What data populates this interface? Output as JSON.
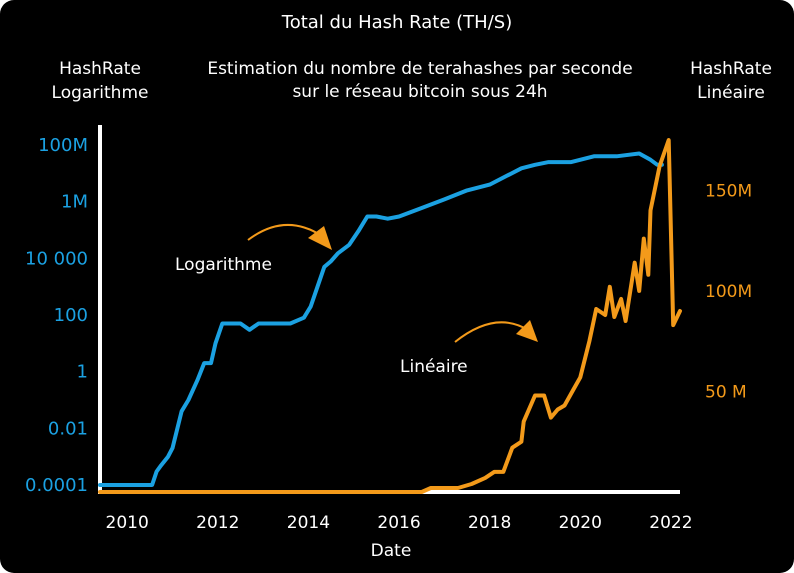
{
  "chart_data": {
    "type": "line",
    "title": "Total du Hash Rate  (TH/S)",
    "subtitle_lines": [
      "Estimation du nombre de terahashes  par seconde",
      "sur le réseau bitcoin sous 24h"
    ],
    "left_axis_title_lines": [
      "HashRate",
      "Logarithme"
    ],
    "right_axis_title_lines": [
      "HashRate",
      "Linéaire"
    ],
    "xlabel": "Date",
    "x_ticks": [
      "2010",
      "2012",
      "2014",
      "2016",
      "2018",
      "2020",
      "2022"
    ],
    "xlim": [
      2009.4,
      2022.2
    ],
    "left_axis": {
      "scale": "log",
      "ylim_log10": [
        -4,
        8
      ],
      "ticks": [
        {
          "value": 100000000,
          "label": "100M"
        },
        {
          "value": 1000000,
          "label": "1M"
        },
        {
          "value": 10000,
          "label": "10 000"
        },
        {
          "value": 100,
          "label": "100"
        },
        {
          "value": 1,
          "label": "1"
        },
        {
          "value": 0.01,
          "label": "0.01"
        },
        {
          "value": 0.0001,
          "label": "0.0001"
        }
      ]
    },
    "right_axis": {
      "scale": "linear",
      "ylim": [
        0,
        175000000
      ],
      "ticks": [
        {
          "value": 150000000,
          "label": "150M"
        },
        {
          "value": 100000000,
          "label": "100M"
        },
        {
          "value": 50000000,
          "label": "50 M"
        }
      ]
    },
    "series": [
      {
        "name": "Logarithme",
        "axis": "left",
        "color": "#1ba1e2",
        "points": [
          [
            2009.4,
            0.0001
          ],
          [
            2010.35,
            0.0001
          ],
          [
            2010.55,
            0.0001
          ],
          [
            2010.65,
            0.0003
          ],
          [
            2010.75,
            0.0005
          ],
          [
            2010.9,
            0.001
          ],
          [
            2011.0,
            0.002
          ],
          [
            2011.2,
            0.04
          ],
          [
            2011.35,
            0.1
          ],
          [
            2011.55,
            0.5
          ],
          [
            2011.7,
            2
          ],
          [
            2011.85,
            2
          ],
          [
            2011.95,
            10
          ],
          [
            2012.1,
            50
          ],
          [
            2012.3,
            50
          ],
          [
            2012.5,
            50
          ],
          [
            2012.7,
            30
          ],
          [
            2012.9,
            50
          ],
          [
            2013.3,
            50
          ],
          [
            2013.6,
            50
          ],
          [
            2013.9,
            80
          ],
          [
            2014.05,
            200
          ],
          [
            2014.2,
            1000
          ],
          [
            2014.35,
            5000
          ],
          [
            2014.5,
            8000
          ],
          [
            2014.65,
            15000
          ],
          [
            2014.9,
            30000
          ],
          [
            2015.1,
            90000
          ],
          [
            2015.3,
            300000
          ],
          [
            2015.5,
            300000
          ],
          [
            2015.75,
            250000
          ],
          [
            2016.0,
            300000
          ],
          [
            2016.5,
            600000
          ],
          [
            2017.0,
            1200000
          ],
          [
            2017.5,
            2500000
          ],
          [
            2018.0,
            4000000
          ],
          [
            2018.7,
            15000000
          ],
          [
            2019.0,
            20000000
          ],
          [
            2019.3,
            25000000
          ],
          [
            2019.8,
            25000000
          ],
          [
            2020.3,
            40000000
          ],
          [
            2020.8,
            40000000
          ],
          [
            2021.3,
            50000000
          ],
          [
            2021.55,
            30000000
          ],
          [
            2021.7,
            20000000
          ],
          [
            2021.8,
            20000000
          ]
        ]
      },
      {
        "name": "Linéaire",
        "axis": "right",
        "color": "#f39a1a",
        "points": [
          [
            2009.4,
            0
          ],
          [
            2015.2,
            0
          ],
          [
            2016.0,
            0
          ],
          [
            2016.5,
            0
          ],
          [
            2016.7,
            2000000
          ],
          [
            2017.3,
            2000000
          ],
          [
            2017.6,
            4000000
          ],
          [
            2017.9,
            7000000
          ],
          [
            2018.1,
            10000000
          ],
          [
            2018.3,
            10000000
          ],
          [
            2018.5,
            22000000
          ],
          [
            2018.7,
            25000000
          ],
          [
            2018.75,
            35000000
          ],
          [
            2019.0,
            48000000
          ],
          [
            2019.2,
            48000000
          ],
          [
            2019.35,
            37000000
          ],
          [
            2019.5,
            41000000
          ],
          [
            2019.65,
            43000000
          ],
          [
            2019.85,
            51000000
          ],
          [
            2020.0,
            57000000
          ],
          [
            2020.2,
            75000000
          ],
          [
            2020.35,
            91000000
          ],
          [
            2020.55,
            88000000
          ],
          [
            2020.65,
            102000000
          ],
          [
            2020.75,
            87000000
          ],
          [
            2020.9,
            96000000
          ],
          [
            2021.0,
            85000000
          ],
          [
            2021.2,
            114000000
          ],
          [
            2021.3,
            100000000
          ],
          [
            2021.4,
            126000000
          ],
          [
            2021.5,
            108000000
          ],
          [
            2021.55,
            140000000
          ],
          [
            2021.75,
            162000000
          ],
          [
            2021.95,
            175000000
          ],
          [
            2022.05,
            83000000
          ],
          [
            2022.2,
            90000000
          ]
        ]
      }
    ],
    "annotations": [
      {
        "text": "Logarithme",
        "color": "#ffffff",
        "arrow_color": "#f39a1a"
      },
      {
        "text": "Linéaire",
        "color": "#ffffff",
        "arrow_color": "#f39a1a"
      }
    ],
    "colors": {
      "background": "#000000",
      "left_axis": "#1ba1e2",
      "right_axis": "#f39a1a",
      "text": "#ffffff",
      "axis": "#ffffff"
    },
    "grid": false
  }
}
